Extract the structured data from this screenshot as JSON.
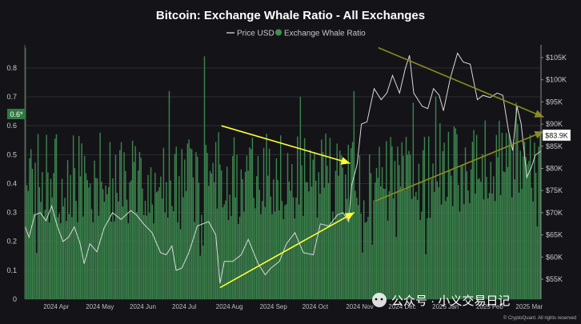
{
  "chart_data": {
    "type": "bar",
    "title": "Bitcoin: Exchange Whale Ratio - All Exchanges",
    "legend": {
      "placement": "top-center",
      "items": [
        {
          "name": "Price USD",
          "color": "#bdbdbd",
          "marker": "line"
        },
        {
          "name": "Exchange Whale Ratio",
          "color": "#3f8f52",
          "marker": "dot"
        }
      ]
    },
    "x_ticks": [
      "2024 Apr",
      "2024 May",
      "2024 Jun",
      "2024 Jul",
      "2024 Aug",
      "2024 Sep",
      "2024 Oct",
      "2024 Nov",
      "2024 Dec",
      "2025 Jan",
      "2025 Feb",
      "2025 Mar"
    ],
    "x_range": [
      "2024-03-20",
      "2025-03-20"
    ],
    "left_axis": {
      "ticks": [
        "0",
        "0.1",
        "0.2",
        "0.3",
        "0.4",
        "0.5",
        "0.6",
        "0.7",
        "0.8"
      ],
      "ylim": [
        0,
        0.88
      ]
    },
    "right_axis": {
      "ticks": [
        "$55K",
        "$60K",
        "$65K",
        "$70K",
        "$75K",
        "$80K",
        "$85K",
        "$90K",
        "$95K",
        "$100K",
        "$105K"
      ],
      "values": [
        55000,
        60000,
        65000,
        70000,
        75000,
        80000,
        85000,
        90000,
        95000,
        100000,
        105000
      ]
    },
    "current_ratio_label": "0.6*",
    "current_ratio_value": 0.6,
    "current_price_label": "$83.9K",
    "current_price_value": 83900,
    "price_series": {
      "name": "Price USD",
      "x": [
        "2024-03-20",
        "2024-03-23",
        "2024-03-27",
        "2024-03-31",
        "2024-04-04",
        "2024-04-08",
        "2024-04-12",
        "2024-04-16",
        "2024-04-20",
        "2024-04-24",
        "2024-04-28",
        "2024-05-01",
        "2024-05-05",
        "2024-05-10",
        "2024-05-15",
        "2024-05-21",
        "2024-05-27",
        "2024-06-03",
        "2024-06-07",
        "2024-06-12",
        "2024-06-18",
        "2024-06-24",
        "2024-06-28",
        "2024-07-02",
        "2024-07-05",
        "2024-07-09",
        "2024-07-14",
        "2024-07-20",
        "2024-07-28",
        "2024-08-02",
        "2024-08-05",
        "2024-08-08",
        "2024-08-14",
        "2024-08-20",
        "2024-08-25",
        "2024-09-01",
        "2024-09-06",
        "2024-09-10",
        "2024-09-16",
        "2024-09-21",
        "2024-09-27",
        "2024-10-03",
        "2024-10-10",
        "2024-10-15",
        "2024-10-21",
        "2024-10-27",
        "2024-10-31",
        "2024-11-04",
        "2024-11-06",
        "2024-11-10",
        "2024-11-13",
        "2024-11-17",
        "2024-11-22",
        "2024-11-27",
        "2024-12-01",
        "2024-12-05",
        "2024-12-10",
        "2024-12-14",
        "2024-12-17",
        "2024-12-20",
        "2024-12-26",
        "2024-12-30",
        "2025-01-03",
        "2025-01-07",
        "2025-01-10",
        "2025-01-15",
        "2025-01-20",
        "2025-01-24",
        "2025-01-29",
        "2025-02-03",
        "2025-02-07",
        "2025-02-12",
        "2025-02-17",
        "2025-02-21",
        "2025-02-25",
        "2025-02-28",
        "2025-03-03",
        "2025-03-06",
        "2025-03-10",
        "2025-03-13",
        "2025-03-16",
        "2025-03-20"
      ],
      "values": [
        67000,
        64500,
        69500,
        70000,
        68200,
        71500,
        67000,
        63500,
        64500,
        66800,
        63200,
        58500,
        63000,
        61200,
        66500,
        70000,
        68500,
        70500,
        69500,
        67500,
        65500,
        61000,
        60500,
        62500,
        57000,
        57500,
        61000,
        67000,
        68000,
        65000,
        54000,
        59000,
        59000,
        60500,
        64000,
        58500,
        56000,
        57500,
        59000,
        63000,
        65500,
        61000,
        60500,
        67500,
        67000,
        69500,
        70000,
        68000,
        76000,
        81000,
        90000,
        90500,
        98000,
        95500,
        97000,
        101000,
        97000,
        102500,
        105500,
        97000,
        94000,
        93500,
        98000,
        96500,
        93000,
        100500,
        106000,
        104000,
        103500,
        95500,
        96500,
        96000,
        97000,
        96500,
        88500,
        84000,
        94000,
        90000,
        78000,
        80000,
        83000,
        83900
      ]
    },
    "ratio_series": {
      "name": "Exchange Whale Ratio",
      "x_start": "2024-03-20",
      "step_days": 1,
      "seed": 20240320,
      "base": 0.42,
      "spread": 0.16,
      "spikes": [
        {
          "date": "2024-03-20",
          "value": 0.87
        },
        {
          "date": "2024-06-30",
          "value": 0.72
        },
        {
          "date": "2024-07-25",
          "value": 0.84
        },
        {
          "date": "2024-10-01",
          "value": 0.7
        },
        {
          "date": "2024-11-08",
          "value": 0.72
        },
        {
          "date": "2024-12-20",
          "value": 0.68
        },
        {
          "date": "2025-01-05",
          "value": 0.7
        },
        {
          "date": "2025-03-03",
          "value": 0.68
        }
      ]
    },
    "annotations": [
      {
        "type": "arrow",
        "color": "#ffff33",
        "from": {
          "date": "2024-08-06",
          "ratio": 0.6
        },
        "to": {
          "date": "2024-11-05",
          "ratio": 0.47
        }
      },
      {
        "type": "arrow",
        "color": "#ffff33",
        "from": {
          "date": "2024-08-05",
          "ratio": 0.04
        },
        "to": {
          "date": "2024-11-08",
          "ratio": 0.3
        }
      },
      {
        "type": "arrow",
        "color": "#8c8c1e",
        "from": {
          "date": "2024-11-25",
          "ratio": 0.87
        },
        "to": {
          "date": "2025-03-22",
          "ratio": 0.63
        }
      },
      {
        "type": "arrow",
        "color": "#8c8c1e",
        "from": {
          "date": "2024-11-23",
          "ratio": 0.34
        },
        "to": {
          "date": "2025-03-22",
          "ratio": 0.58
        }
      }
    ]
  },
  "watermark": "公众号 · 小义交易日记",
  "credit": "© CryptoQuant. All rights reserved"
}
